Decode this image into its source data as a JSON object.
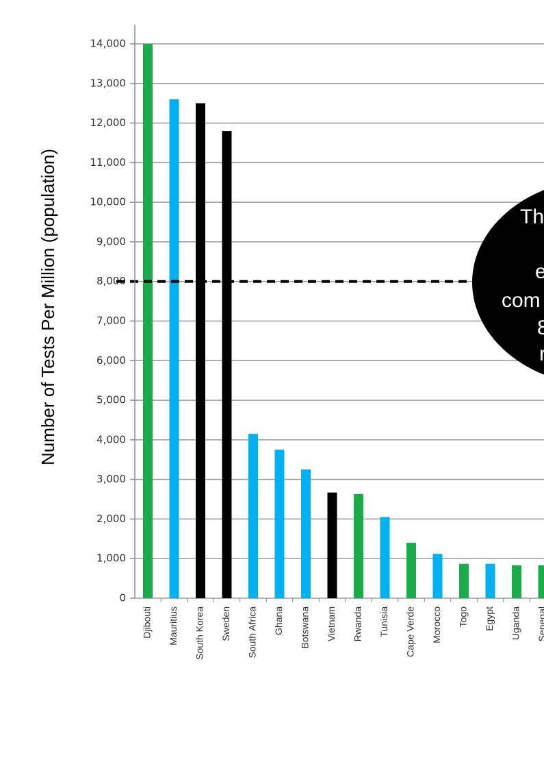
{
  "chart_data": {
    "type": "bar",
    "y_label": "Number of Tests Per Million (population)",
    "categories": [
      "Djibouti",
      "Mauritius",
      "South Korea",
      "Sweden",
      "South Africa",
      "Ghana",
      "Botswana",
      "Vietnam",
      "Rwanda",
      "Tunisia",
      "Cape Verde",
      "Morocco",
      "Togo",
      "Egypt",
      "Uganda",
      "Senegal"
    ],
    "values": [
      14000,
      12600,
      12500,
      11800,
      4150,
      3750,
      3250,
      2670,
      2630,
      2050,
      1400,
      1120,
      870,
      870,
      830,
      830
    ],
    "colors": [
      "#1aab4b",
      "#00b0f0",
      "#000000",
      "#000000",
      "#00b0f0",
      "#00b0f0",
      "#00b0f0",
      "#000000",
      "#1aab4b",
      "#00b0f0",
      "#1aab4b",
      "#00b0f0",
      "#1aab4b",
      "#00b0f0",
      "#1aab4b",
      "#1aab4b"
    ],
    "ylim": [
      0,
      14000
    ],
    "yticks": [
      0,
      {
        "value": 1000,
        "label": "1,000"
      },
      {
        "value": 2000,
        "label": "2,000"
      },
      {
        "value": 3000,
        "label": "3,000"
      },
      {
        "value": 4000,
        "label": "4,000"
      },
      {
        "value": 5000,
        "label": "5,000"
      },
      {
        "value": 6000,
        "label": "6,000"
      },
      {
        "value": 7000,
        "label": "7,000"
      },
      {
        "value": 8000,
        "label": "8,000"
      },
      {
        "value": 9000,
        "label": "9,000"
      },
      {
        "value": 10000,
        "label": "10,000"
      },
      {
        "value": 11000,
        "label": "11,000"
      },
      {
        "value": 12000,
        "label": "12,000"
      },
      {
        "value": 13000,
        "label": "13,000"
      },
      {
        "value": 14000,
        "label": "14,000"
      }
    ],
    "grid": true,
    "reference_line": 8000,
    "annotation_lines": [
      "Th",
      "e",
      "com",
      "8",
      "r"
    ]
  }
}
